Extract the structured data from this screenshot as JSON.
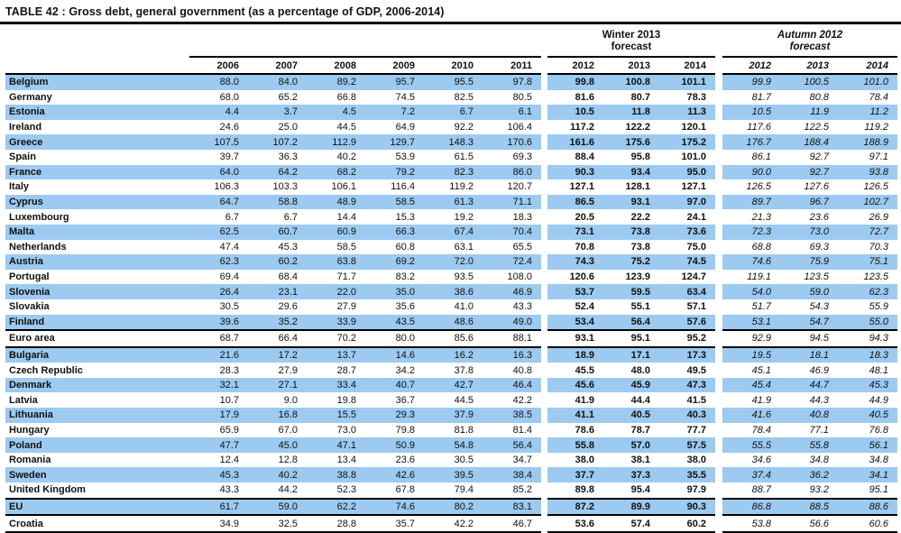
{
  "title": "TABLE 42 : Gross debt, general government (as a percentage of GDP, 2006-2014)",
  "colors": {
    "row_highlight": "#9CCAF0",
    "rule": "#000000"
  },
  "table": {
    "history_years": [
      "2006",
      "2007",
      "2008",
      "2009",
      "2010",
      "2011"
    ],
    "forecast_groups": [
      {
        "line1": "Winter 2013",
        "line2": "forecast",
        "years": [
          "2012",
          "2013",
          "2014"
        ]
      },
      {
        "line1": "Autumn 2012",
        "line2": "forecast",
        "years": [
          "2012",
          "2013",
          "2014"
        ]
      }
    ],
    "rows": [
      {
        "country": "Belgium",
        "y": [
          "88.0",
          "84.0",
          "89.2",
          "95.7",
          "95.5",
          "97.8"
        ],
        "winter": [
          "99.8",
          "100.8",
          "101.1"
        ],
        "autumn": [
          "99.9",
          "100.5",
          "101.0"
        ]
      },
      {
        "country": "Germany",
        "y": [
          "68.0",
          "65.2",
          "66.8",
          "74.5",
          "82.5",
          "80.5"
        ],
        "winter": [
          "81.6",
          "80.7",
          "78.3"
        ],
        "autumn": [
          "81.7",
          "80.8",
          "78.4"
        ]
      },
      {
        "country": "Estonia",
        "y": [
          "4.4",
          "3.7",
          "4.5",
          "7.2",
          "6.7",
          "6.1"
        ],
        "winter": [
          "10.5",
          "11.8",
          "11.3"
        ],
        "autumn": [
          "10.5",
          "11.9",
          "11.2"
        ]
      },
      {
        "country": "Ireland",
        "y": [
          "24.6",
          "25.0",
          "44.5",
          "64.9",
          "92.2",
          "106.4"
        ],
        "winter": [
          "117.2",
          "122.2",
          "120.1"
        ],
        "autumn": [
          "117.6",
          "122.5",
          "119.2"
        ]
      },
      {
        "country": "Greece",
        "y": [
          "107.5",
          "107.2",
          "112.9",
          "129.7",
          "148.3",
          "170.6"
        ],
        "winter": [
          "161.6",
          "175.6",
          "175.2"
        ],
        "autumn": [
          "176.7",
          "188.4",
          "188.9"
        ]
      },
      {
        "country": "Spain",
        "y": [
          "39.7",
          "36.3",
          "40.2",
          "53.9",
          "61.5",
          "69.3"
        ],
        "winter": [
          "88.4",
          "95.8",
          "101.0"
        ],
        "autumn": [
          "86.1",
          "92.7",
          "97.1"
        ]
      },
      {
        "country": "France",
        "y": [
          "64.0",
          "64.2",
          "68.2",
          "79.2",
          "82.3",
          "86.0"
        ],
        "winter": [
          "90.3",
          "93.4",
          "95.0"
        ],
        "autumn": [
          "90.0",
          "92.7",
          "93.8"
        ]
      },
      {
        "country": "Italy",
        "y": [
          "106.3",
          "103.3",
          "106.1",
          "116.4",
          "119.2",
          "120.7"
        ],
        "winter": [
          "127.1",
          "128.1",
          "127.1"
        ],
        "autumn": [
          "126.5",
          "127.6",
          "126.5"
        ]
      },
      {
        "country": "Cyprus",
        "y": [
          "64.7",
          "58.8",
          "48.9",
          "58.5",
          "61.3",
          "71.1"
        ],
        "winter": [
          "86.5",
          "93.1",
          "97.0"
        ],
        "autumn": [
          "89.7",
          "96.7",
          "102.7"
        ]
      },
      {
        "country": "Luxembourg",
        "y": [
          "6.7",
          "6.7",
          "14.4",
          "15.3",
          "19.2",
          "18.3"
        ],
        "winter": [
          "20.5",
          "22.2",
          "24.1"
        ],
        "autumn": [
          "21.3",
          "23.6",
          "26.9"
        ]
      },
      {
        "country": "Malta",
        "y": [
          "62.5",
          "60.7",
          "60.9",
          "66.3",
          "67.4",
          "70.4"
        ],
        "winter": [
          "73.1",
          "73.8",
          "73.6"
        ],
        "autumn": [
          "72.3",
          "73.0",
          "72.7"
        ]
      },
      {
        "country": "Netherlands",
        "y": [
          "47.4",
          "45.3",
          "58.5",
          "60.8",
          "63.1",
          "65.5"
        ],
        "winter": [
          "70.8",
          "73.8",
          "75.0"
        ],
        "autumn": [
          "68.8",
          "69.3",
          "70.3"
        ]
      },
      {
        "country": "Austria",
        "y": [
          "62.3",
          "60.2",
          "63.8",
          "69.2",
          "72.0",
          "72.4"
        ],
        "winter": [
          "74.3",
          "75.2",
          "74.5"
        ],
        "autumn": [
          "74.6",
          "75.9",
          "75.1"
        ]
      },
      {
        "country": "Portugal",
        "y": [
          "69.4",
          "68.4",
          "71.7",
          "83.2",
          "93.5",
          "108.0"
        ],
        "winter": [
          "120.6",
          "123.9",
          "124.7"
        ],
        "autumn": [
          "119.1",
          "123.5",
          "123.5"
        ]
      },
      {
        "country": "Slovenia",
        "y": [
          "26.4",
          "23.1",
          "22.0",
          "35.0",
          "38.6",
          "46.9"
        ],
        "winter": [
          "53.7",
          "59.5",
          "63.4"
        ],
        "autumn": [
          "54.0",
          "59.0",
          "62.3"
        ]
      },
      {
        "country": "Slovakia",
        "y": [
          "30.5",
          "29.6",
          "27.9",
          "35.6",
          "41.0",
          "43.3"
        ],
        "winter": [
          "52.4",
          "55.1",
          "57.1"
        ],
        "autumn": [
          "51.7",
          "54.3",
          "55.9"
        ]
      },
      {
        "country": "Finland",
        "y": [
          "39.6",
          "35.2",
          "33.9",
          "43.5",
          "48.6",
          "49.0"
        ],
        "winter": [
          "53.4",
          "56.4",
          "57.6"
        ],
        "autumn": [
          "53.1",
          "54.7",
          "55.0"
        ]
      },
      {
        "country": "Euro area",
        "y": [
          "68.7",
          "66.4",
          "70.2",
          "80.0",
          "85.6",
          "88.1"
        ],
        "winter": [
          "93.1",
          "95.1",
          "95.2"
        ],
        "autumn": [
          "92.9",
          "94.5",
          "94.3"
        ],
        "rule_above": true,
        "rule_below": true
      },
      {
        "country": "Bulgaria",
        "y": [
          "21.6",
          "17.2",
          "13.7",
          "14.6",
          "16.2",
          "16.3"
        ],
        "winter": [
          "18.9",
          "17.1",
          "17.3"
        ],
        "autumn": [
          "19.5",
          "18.1",
          "18.3"
        ]
      },
      {
        "country": "Czech Republic",
        "y": [
          "28.3",
          "27.9",
          "28.7",
          "34.2",
          "37.8",
          "40.8"
        ],
        "winter": [
          "45.5",
          "48.0",
          "49.5"
        ],
        "autumn": [
          "45.1",
          "46.9",
          "48.1"
        ]
      },
      {
        "country": "Denmark",
        "y": [
          "32.1",
          "27.1",
          "33.4",
          "40.7",
          "42.7",
          "46.4"
        ],
        "winter": [
          "45.6",
          "45.9",
          "47.3"
        ],
        "autumn": [
          "45.4",
          "44.7",
          "45.3"
        ]
      },
      {
        "country": "Latvia",
        "y": [
          "10.7",
          "9.0",
          "19.8",
          "36.7",
          "44.5",
          "42.2"
        ],
        "winter": [
          "41.9",
          "44.4",
          "41.5"
        ],
        "autumn": [
          "41.9",
          "44.3",
          "44.9"
        ]
      },
      {
        "country": "Lithuania",
        "y": [
          "17.9",
          "16.8",
          "15.5",
          "29.3",
          "37.9",
          "38.5"
        ],
        "winter": [
          "41.1",
          "40.5",
          "40.3"
        ],
        "autumn": [
          "41.6",
          "40.8",
          "40.5"
        ]
      },
      {
        "country": "Hungary",
        "y": [
          "65.9",
          "67.0",
          "73.0",
          "79.8",
          "81.8",
          "81.4"
        ],
        "winter": [
          "78.6",
          "78.7",
          "77.7"
        ],
        "autumn": [
          "78.4",
          "77.1",
          "76.8"
        ]
      },
      {
        "country": "Poland",
        "y": [
          "47.7",
          "45.0",
          "47.1",
          "50.9",
          "54.8",
          "56.4"
        ],
        "winter": [
          "55.8",
          "57.0",
          "57.5"
        ],
        "autumn": [
          "55.5",
          "55.8",
          "56.1"
        ]
      },
      {
        "country": "Romania",
        "y": [
          "12.4",
          "12.8",
          "13.4",
          "23.6",
          "30.5",
          "34.7"
        ],
        "winter": [
          "38.0",
          "38.1",
          "38.0"
        ],
        "autumn": [
          "34.6",
          "34.8",
          "34.8"
        ]
      },
      {
        "country": "Sweden",
        "y": [
          "45.3",
          "40.2",
          "38.8",
          "42.6",
          "39.5",
          "38.4"
        ],
        "winter": [
          "37.7",
          "37.3",
          "35.5"
        ],
        "autumn": [
          "37.4",
          "36.2",
          "34.1"
        ]
      },
      {
        "country": "United Kingdom",
        "y": [
          "43.3",
          "44.2",
          "52.3",
          "67.8",
          "79.4",
          "85.2"
        ],
        "winter": [
          "89.8",
          "95.4",
          "97.9"
        ],
        "autumn": [
          "88.7",
          "93.2",
          "95.1"
        ]
      },
      {
        "country": "EU",
        "y": [
          "61.7",
          "59.0",
          "62.2",
          "74.6",
          "80.2",
          "83.1"
        ],
        "winter": [
          "87.2",
          "89.9",
          "90.3"
        ],
        "autumn": [
          "86.8",
          "88.5",
          "88.6"
        ],
        "rule_above": true,
        "rule_below": true
      },
      {
        "country": "Croatia",
        "y": [
          "34.9",
          "32.5",
          "28.8",
          "35.7",
          "42.2",
          "46.7"
        ],
        "winter": [
          "53.6",
          "57.4",
          "60.2"
        ],
        "autumn": [
          "53.8",
          "56.6",
          "60.6"
        ],
        "rule_below": true
      }
    ]
  }
}
